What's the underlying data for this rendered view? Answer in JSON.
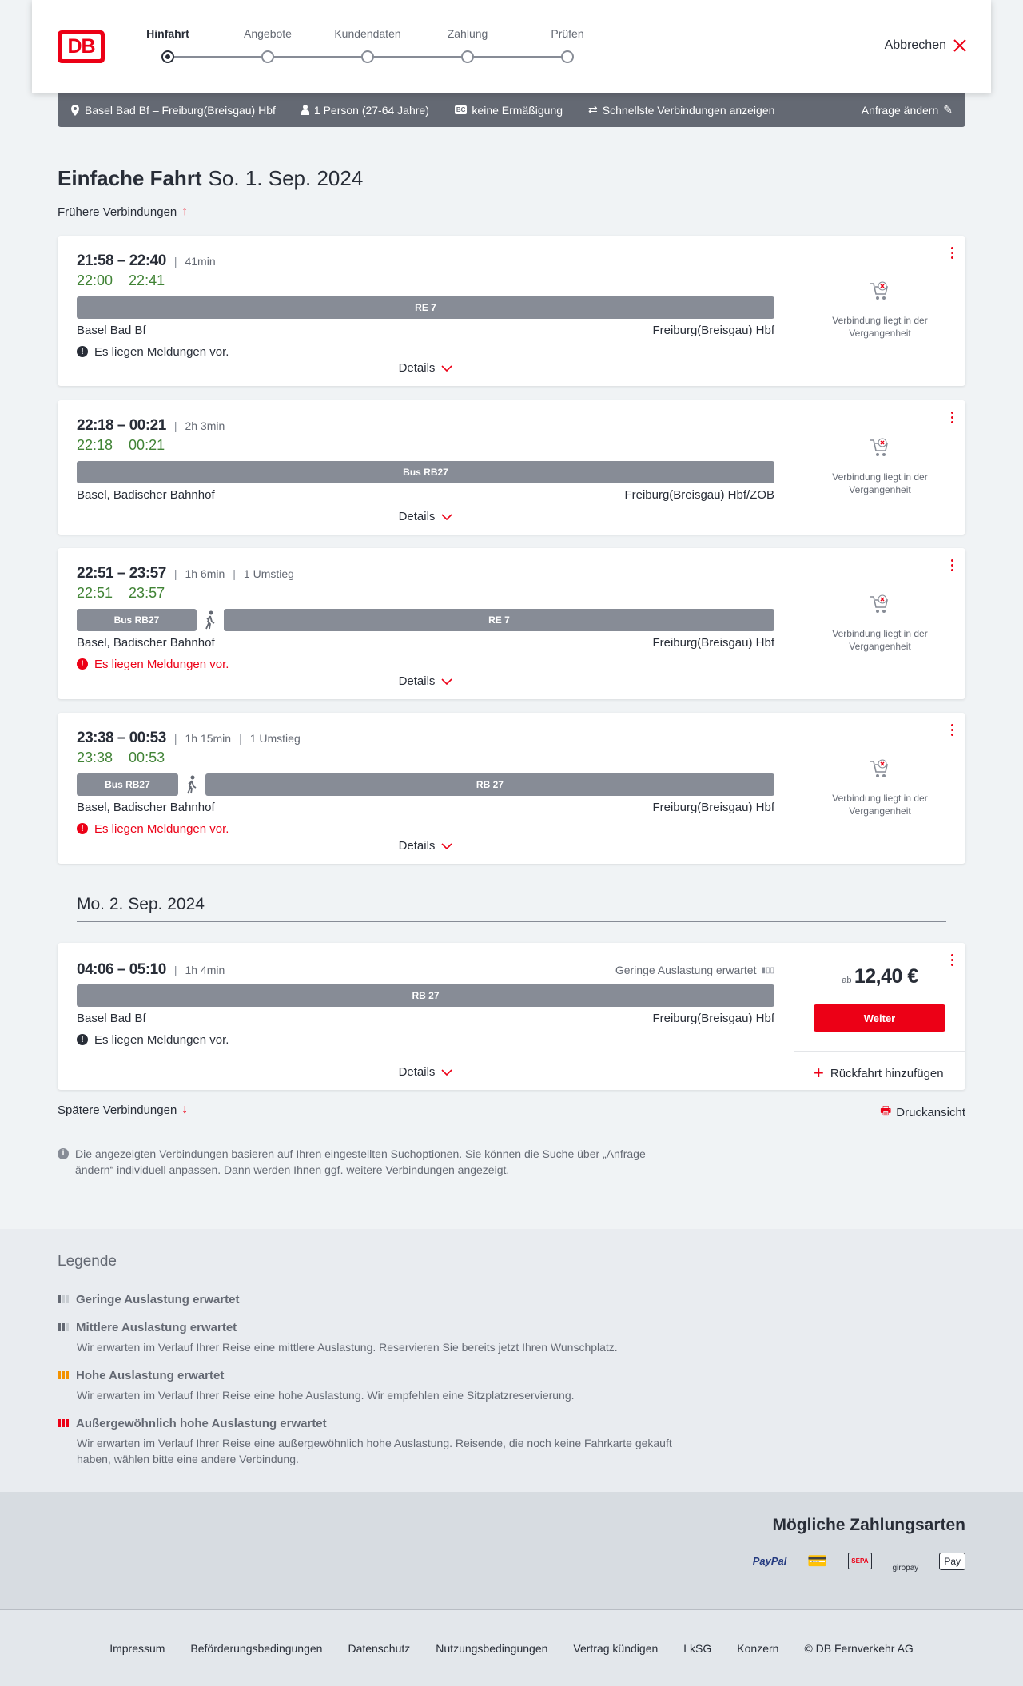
{
  "header": {
    "logo": "DB",
    "steps": [
      "Hinfahrt",
      "Angebote",
      "Kundendaten",
      "Zahlung",
      "Prüfen"
    ],
    "active_step": 0,
    "cancel": "Abbrechen"
  },
  "summary": {
    "route": "Basel Bad Bf – Freiburg(Breisgau) Hbf",
    "passengers": "1 Person (27-64 Jahre)",
    "discount_badge": "BC",
    "discount": "keine Ermäßigung",
    "fastest": "Schnellste Verbindungen anzeigen",
    "edit": "Anfrage ändern"
  },
  "page": {
    "title": "Einfache Fahrt",
    "date": "So. 1. Sep. 2024",
    "earlier": "Frühere Verbindungen",
    "later": "Spätere Verbindungen",
    "print": "Druckansicht",
    "next_day": "Mo. 2. Sep. 2024",
    "info": "Die angezeigten Verbindungen basieren auf Ihren eingestellten Suchoptionen. Sie können die Suche über „Anfrage ändern“ individuell anpassen. Dann werden Ihnen ggf. weitere Verbindungen angezeigt."
  },
  "connections": [
    {
      "times": "21:58 – 22:40",
      "duration": "41min",
      "transfers": "",
      "rt_dep": "22:00",
      "rt_arr": "22:41",
      "segments": [
        "RE 7"
      ],
      "from": "Basel Bad Bf",
      "to": "Freiburg(Breisgau) Hbf",
      "message": "Es liegen Meldungen vor.",
      "message_severity": "info",
      "details": "Details",
      "status": "Verbindung liegt in der Vergangenheit"
    },
    {
      "times": "22:18 – 00:21",
      "duration": "2h 3min",
      "transfers": "",
      "rt_dep": "22:18",
      "rt_arr": "00:21",
      "segments": [
        "Bus RB27"
      ],
      "from": "Basel, Badischer Bahnhof",
      "to": "Freiburg(Breisgau) Hbf/ZOB",
      "message": "",
      "details": "Details",
      "status": "Verbindung liegt in der Vergangenheit"
    },
    {
      "times": "22:51 – 23:57",
      "duration": "1h 6min",
      "transfers": "1 Umstieg",
      "rt_dep": "22:51",
      "rt_arr": "23:57",
      "segments": [
        "Bus RB27",
        "RE 7"
      ],
      "from": "Basel, Badischer Bahnhof",
      "to": "Freiburg(Breisgau) Hbf",
      "message": "Es liegen Meldungen vor.",
      "message_severity": "warning",
      "details": "Details",
      "status": "Verbindung liegt in der Vergangenheit"
    },
    {
      "times": "23:38 – 00:53",
      "duration": "1h 15min",
      "transfers": "1 Umstieg",
      "rt_dep": "23:38",
      "rt_arr": "00:53",
      "segments": [
        "Bus RB27",
        "RB 27"
      ],
      "from": "Basel, Badischer Bahnhof",
      "to": "Freiburg(Breisgau) Hbf",
      "message": "Es liegen Meldungen vor.",
      "message_severity": "warning",
      "details": "Details",
      "status": "Verbindung liegt in der Vergangenheit"
    },
    {
      "times": "04:06 – 05:10",
      "duration": "1h 4min",
      "transfers": "",
      "occupancy": "Geringe Auslastung erwartet",
      "segments": [
        "RB 27"
      ],
      "from": "Basel Bad Bf",
      "to": "Freiburg(Breisgau) Hbf",
      "message": "Es liegen Meldungen vor.",
      "message_severity": "info",
      "details": "Details",
      "price_prefix": "ab",
      "price": "12,40 €",
      "continue": "Weiter",
      "add_return": "Rückfahrt hinzufügen"
    }
  ],
  "legend": {
    "title": "Legende",
    "items": [
      {
        "label": "Geringe Auslastung erwartet",
        "text": ""
      },
      {
        "label": "Mittlere Auslastung erwartet",
        "text": "Wir erwarten im Verlauf Ihrer Reise eine mittlere Auslastung. Reservieren Sie bereits jetzt Ihren Wunschplatz."
      },
      {
        "label": "Hohe Auslastung erwartet",
        "text": "Wir erwarten im Verlauf Ihrer Reise eine hohe Auslastung. Wir empfehlen eine Sitzplatzreservierung."
      },
      {
        "label": "Außergewöhnlich hohe Auslastung erwartet",
        "text": "Wir erwarten im Verlauf Ihrer Reise eine außergewöhnlich hohe Auslastung. Reisende, die noch keine Fahrkarte gekauft haben, wählen bitte eine andere Verbindung."
      }
    ]
  },
  "payment": {
    "title": "Mögliche Zahlungsarten",
    "methods": [
      "PayPal",
      "Kreditkarte",
      "SEPA",
      "giropay",
      "Apple Pay"
    ]
  },
  "footer": [
    "Impressum",
    "Beförderungsbedingungen",
    "Datenschutz",
    "Nutzungsbedingungen",
    "Vertrag kündigen",
    "LkSG",
    "Konzern",
    "© DB Fernverkehr AG"
  ],
  "colors": {
    "brand_red": "#ec0016",
    "realtime_green": "#408335",
    "segment_gray": "#878c96",
    "summary_bar": "#646973"
  }
}
